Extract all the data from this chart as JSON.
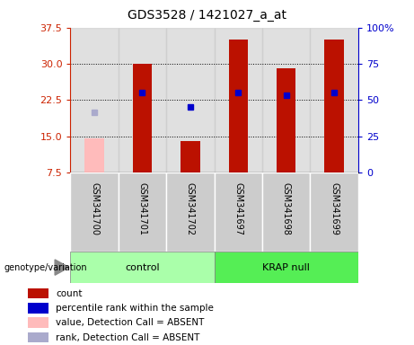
{
  "title": "GDS3528 / 1421027_a_at",
  "samples": [
    "GSM341700",
    "GSM341701",
    "GSM341702",
    "GSM341697",
    "GSM341698",
    "GSM341699"
  ],
  "groups": [
    "control",
    "control",
    "control",
    "KRAP null",
    "KRAP null",
    "KRAP null"
  ],
  "ylim_left": [
    7.5,
    37.5
  ],
  "ylim_right": [
    0,
    100
  ],
  "yticks_left": [
    7.5,
    15.0,
    22.5,
    30.0,
    37.5
  ],
  "yticks_right": [
    0,
    25,
    50,
    75,
    100
  ],
  "count_values": [
    14.5,
    30.0,
    14.0,
    35.0,
    29.0,
    35.0
  ],
  "count_absent": [
    true,
    false,
    false,
    false,
    false,
    false
  ],
  "percentile_rank": [
    null,
    24.0,
    21.0,
    24.0,
    23.5,
    24.0
  ],
  "percentile_rank_absent": [
    20.0,
    null,
    null,
    null,
    null,
    null
  ],
  "bar_bottom": 7.5,
  "bar_width": 0.4,
  "color_count": "#bb1100",
  "color_count_absent": "#ffbbbb",
  "color_rank": "#0000cc",
  "color_rank_absent": "#aaaacc",
  "color_ctrl": "#aaffaa",
  "color_krap": "#55ee55",
  "color_sample_bg": "#cccccc",
  "left_axis_color": "#cc2200",
  "right_axis_color": "#0000cc",
  "title_fontsize": 10,
  "tick_fontsize": 8,
  "label_fontsize": 8
}
